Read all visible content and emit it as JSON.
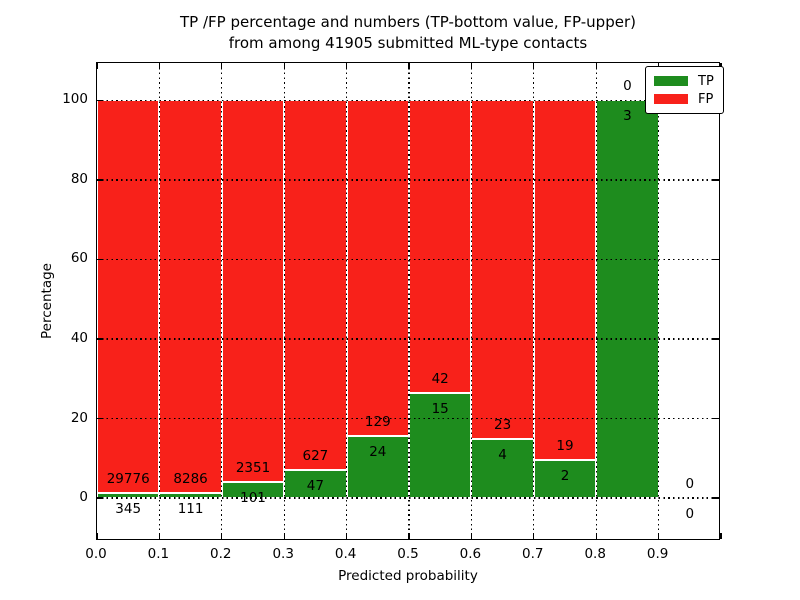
{
  "chart_data": {
    "type": "bar",
    "stacked": true,
    "title_line1": "TP /FP percentage and numbers (TP-bottom value, FP-upper)",
    "title_line2": "from among 41905 submitted ML-type contacts",
    "total_submitted": 41905,
    "xlabel": "Predicted probability",
    "ylabel": "Percentage",
    "bin_edges": [
      0.0,
      0.1,
      0.2,
      0.3,
      0.4,
      0.5,
      0.6,
      0.7,
      0.8,
      0.9,
      1.0
    ],
    "xtick_labels": [
      "0.0",
      "0.1",
      "0.2",
      "0.3",
      "0.4",
      "0.5",
      "0.6",
      "0.7",
      "0.8",
      "0.9"
    ],
    "ytick_values": [
      0,
      20,
      40,
      60,
      80,
      100
    ],
    "xlim": [
      0.0,
      1.0
    ],
    "ylim": [
      -10.8,
      109.4
    ],
    "grid_style": "dotted",
    "bar_edge_color": "#ffffff",
    "series": [
      {
        "name": "TP",
        "color": "#1e8c1e",
        "counts": [
          345,
          111,
          101,
          47,
          24,
          15,
          4,
          2,
          3,
          0
        ],
        "percent": [
          1.15,
          1.32,
          4.12,
          6.97,
          15.69,
          26.32,
          14.81,
          9.52,
          100,
          0
        ],
        "label_note": "TP-bottom value"
      },
      {
        "name": "FP",
        "color": "#f8211a",
        "counts": [
          29776,
          8286,
          2351,
          627,
          129,
          42,
          23,
          19,
          0,
          0
        ],
        "percent": [
          98.85,
          98.68,
          95.88,
          93.03,
          84.31,
          73.68,
          85.19,
          90.48,
          0,
          0
        ],
        "label_note": "FP-upper"
      }
    ],
    "legend": {
      "position": "upper right",
      "entries": [
        {
          "label": "TP",
          "color": "#1e8c1e"
        },
        {
          "label": "FP",
          "color": "#f8211a"
        }
      ]
    }
  }
}
